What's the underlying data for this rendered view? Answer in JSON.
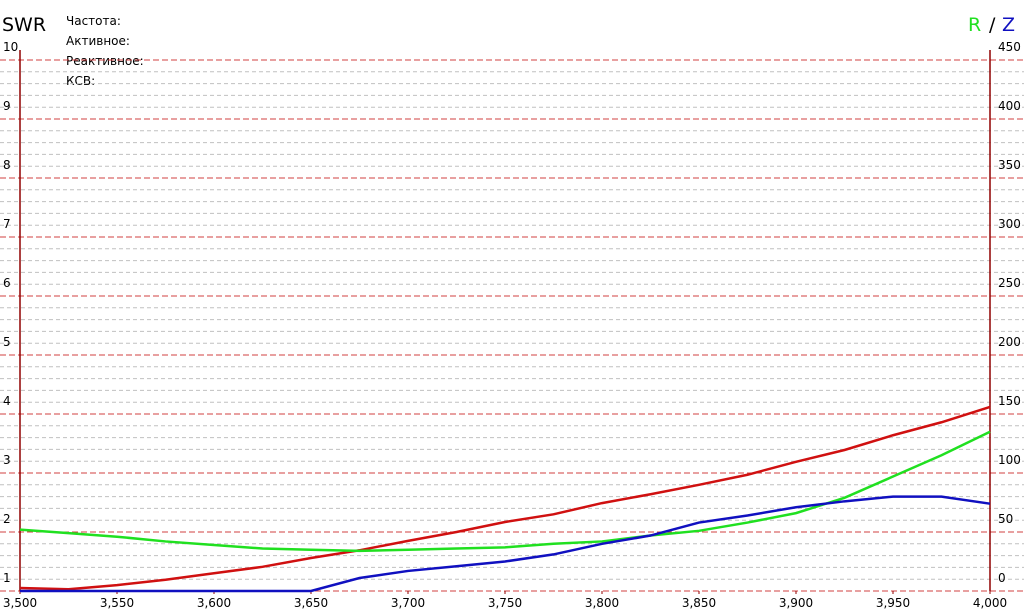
{
  "chart_data": {
    "type": "line",
    "title": "SWR",
    "right_title": [
      "R",
      "/",
      "Z"
    ],
    "readout_labels": [
      "Частота:",
      "Активное:",
      "Реактивное:",
      "КСВ:"
    ],
    "x": [
      3500,
      3525,
      3550,
      3575,
      3600,
      3625,
      3650,
      3675,
      3700,
      3725,
      3750,
      3775,
      3800,
      3825,
      3850,
      3875,
      3900,
      3925,
      3950,
      3975,
      4000
    ],
    "xlim": [
      3500,
      4000
    ],
    "xticks": [
      {
        "value": 3500,
        "label": "3,500"
      },
      {
        "value": 3550,
        "label": "3,550"
      },
      {
        "value": 3600,
        "label": "3,600"
      },
      {
        "value": 3650,
        "label": "3,650"
      },
      {
        "value": 3700,
        "label": "3,700"
      },
      {
        "value": 3750,
        "label": "3,750"
      },
      {
        "value": 3800,
        "label": "3,800"
      },
      {
        "value": 3850,
        "label": "3,850"
      },
      {
        "value": 3900,
        "label": "3,900"
      },
      {
        "value": 3950,
        "label": "3,950"
      },
      {
        "value": 4000,
        "label": "4,000"
      }
    ],
    "ylim": [
      1,
      10
    ],
    "yticks": [
      1,
      2,
      3,
      4,
      5,
      6,
      7,
      8,
      9,
      10
    ],
    "y2lim": [
      0,
      450
    ],
    "y2ticks": [
      0,
      50,
      100,
      150,
      200,
      250,
      300,
      350,
      400,
      450
    ],
    "grid": true,
    "series": [
      {
        "name": "SWR",
        "color": "#d01010",
        "values": [
          1.05,
          1.03,
          1.1,
          1.19,
          1.3,
          1.41,
          1.56,
          1.69,
          1.85,
          2.0,
          2.17,
          2.3,
          2.49,
          2.64,
          2.8,
          2.97,
          3.19,
          3.39,
          3.64,
          3.86,
          4.12
        ]
      },
      {
        "name": "R",
        "color": "#20e020",
        "axis": "y2",
        "values": [
          52,
          49,
          46,
          42,
          39,
          36,
          35,
          34,
          35,
          36,
          37,
          40,
          42,
          47,
          51,
          58,
          66,
          79,
          97,
          115,
          135
        ]
      },
      {
        "name": "Z",
        "color": "#1010c0",
        "axis": "y2",
        "values": [
          0,
          0,
          0,
          0,
          0,
          0,
          0,
          11,
          17,
          21,
          25,
          31,
          40,
          47,
          58,
          64,
          71,
          76,
          80,
          80,
          74
        ]
      }
    ]
  }
}
